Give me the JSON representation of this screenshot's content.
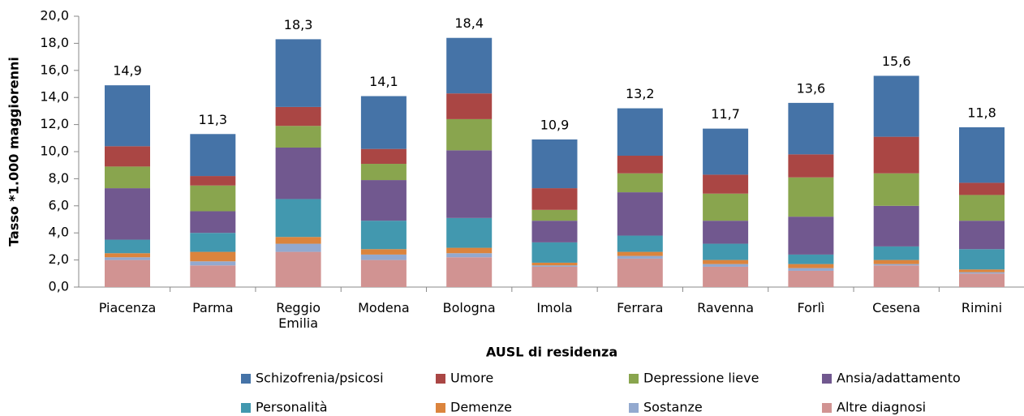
{
  "chart_data": {
    "type": "stacked-bar",
    "y_label": "Tasso *1.000 maggiorenni",
    "x_label": "AUSL di residenza",
    "categories": [
      "Piacenza",
      "Parma",
      "Reggio Emilia",
      "Modena",
      "Bologna",
      "Imola",
      "Ferrara",
      "Ravenna",
      "Forlì",
      "Cesena",
      "Rimini"
    ],
    "series": [
      {
        "name": "Schizofrenia/psicosi",
        "color": "#4573a7",
        "values": [
          4.5,
          3.1,
          5.0,
          3.9,
          4.1,
          3.6,
          3.5,
          3.4,
          3.8,
          4.5,
          4.1
        ]
      },
      {
        "name": "Umore",
        "color": "#aa4644",
        "values": [
          1.5,
          0.7,
          1.4,
          1.1,
          1.9,
          1.6,
          1.3,
          1.4,
          1.7,
          2.7,
          0.9
        ]
      },
      {
        "name": "Depressione lieve",
        "color": "#89a54e",
        "values": [
          1.6,
          1.9,
          1.6,
          1.2,
          2.3,
          0.8,
          1.4,
          2.0,
          2.9,
          2.4,
          1.9
        ]
      },
      {
        "name": "Ansia/adattamento",
        "color": "#71588f",
        "values": [
          3.8,
          1.6,
          3.8,
          3.0,
          5.0,
          1.6,
          3.2,
          1.7,
          2.8,
          3.0,
          2.1
        ]
      },
      {
        "name": "Personalità",
        "color": "#4298af",
        "values": [
          1.0,
          1.4,
          2.8,
          2.1,
          2.2,
          1.5,
          1.2,
          1.2,
          0.7,
          1.0,
          1.5
        ]
      },
      {
        "name": "Demenze",
        "color": "#db843d",
        "values": [
          0.3,
          0.7,
          0.5,
          0.4,
          0.4,
          0.2,
          0.3,
          0.3,
          0.3,
          0.3,
          0.2
        ]
      },
      {
        "name": "Sostanze",
        "color": "#93a9cf",
        "values": [
          0.2,
          0.3,
          0.6,
          0.4,
          0.3,
          0.1,
          0.2,
          0.2,
          0.2,
          0.1,
          0.1
        ]
      },
      {
        "name": "Altre diagnosi",
        "color": "#d19392",
        "values": [
          2.0,
          1.6,
          2.6,
          2.0,
          2.2,
          1.5,
          2.1,
          1.5,
          1.2,
          1.6,
          1.0
        ]
      }
    ],
    "totals": [
      14.9,
      11.3,
      18.3,
      14.1,
      18.4,
      10.9,
      13.2,
      11.7,
      13.6,
      15.6,
      11.8
    ],
    "total_labels": [
      "14,9",
      "11,3",
      "18,3",
      "14,1",
      "18,4",
      "10,9",
      "13,2",
      "11,7",
      "13,6",
      "15,6",
      "11,8"
    ],
    "ylim": [
      0,
      20
    ],
    "yticks": [
      {
        "value": 0,
        "label": "0,0"
      },
      {
        "value": 2,
        "label": "2,0"
      },
      {
        "value": 4,
        "label": "4,0"
      },
      {
        "value": 6,
        "label": "6,0"
      },
      {
        "value": 8,
        "label": "8,0"
      },
      {
        "value": 10,
        "label": "10,0"
      },
      {
        "value": 12,
        "label": "12,0"
      },
      {
        "value": 14,
        "label": "14,0"
      },
      {
        "value": 16,
        "label": "16,0"
      },
      {
        "value": 18,
        "label": "18,0"
      },
      {
        "value": 20,
        "label": "20,0"
      }
    ]
  }
}
